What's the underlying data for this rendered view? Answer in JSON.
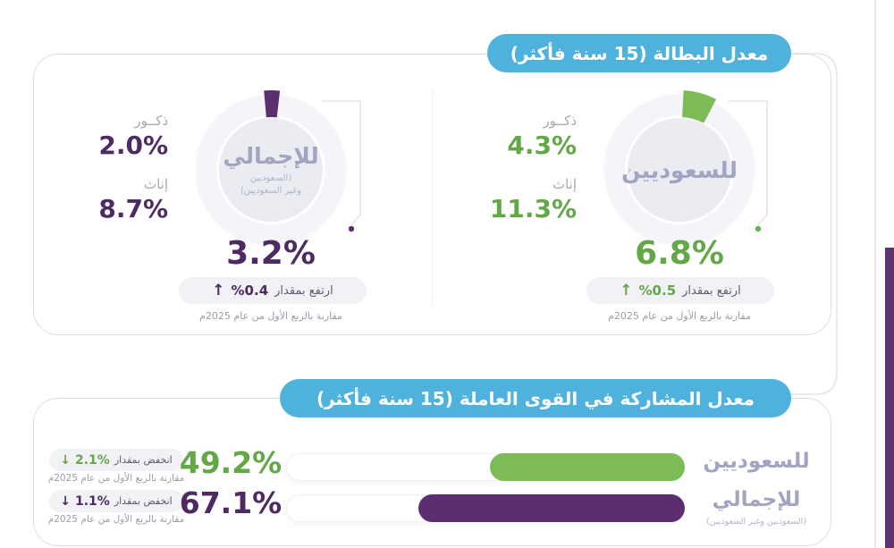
{
  "palette": {
    "blue": "#4fb2dc",
    "purple": "#5c2e70",
    "purple_text": "#4e2a62",
    "green": "#7cbb55",
    "green_text": "#63a847",
    "lavender_label": "#a1a5c2",
    "gray_label": "#a7a7b6",
    "note_gray": "#9b9baa",
    "pill_bg": "#f1f1f6",
    "edge_purple": "#5d3473"
  },
  "unemployment": {
    "title": "معدل البطالة (15 سنة فأكثر)",
    "total": {
      "center_label": "للإجمالي",
      "center_sub": "(السعوديين\nوغير السعوديين)",
      "males_label": "ذكــور",
      "males_value": "2.0%",
      "females_label": "إناث",
      "females_value": "8.7%",
      "main_value": "3.2%",
      "percent": 3.2,
      "change_arrow": "↑",
      "change_value": "%0.4",
      "change_label": "ارتفع بمقدار",
      "note": "مقارنة بالربع الأول من عام 2025م"
    },
    "saudis": {
      "center_label": "للسعوديين",
      "males_label": "ذكــور",
      "males_value": "4.3%",
      "females_label": "إناث",
      "females_value": "11.3%",
      "main_value": "6.8%",
      "percent": 6.8,
      "change_arrow": "↑",
      "change_value": "%0.5",
      "change_label": "ارتفع بمقدار",
      "note": "مقارنة بالربع الأول من عام 2025م"
    }
  },
  "participation": {
    "title": "معدل المشاركة في القوى العاملة (15 سنة فأكثر)",
    "rows": [
      {
        "label": "للسعوديين",
        "value": "49.2%",
        "percent": 49.2,
        "change_arrow": "↓",
        "change_value": "2.1%",
        "change_label": "انخفض بمقدار",
        "note": "مقارنة بالربع الأول من عام 2025م"
      },
      {
        "label": "للإجمالي",
        "sub": "(السعوديين وغير السعوديين)",
        "value": "67.1%",
        "percent": 67.1,
        "change_arrow": "↓",
        "change_value": "1.1%",
        "change_label": "انخفض بمقدار",
        "note": "مقارنة بالربع الأول من عام 2025م"
      }
    ]
  },
  "chart_data": [
    {
      "type": "pie",
      "title": "معدل البطالة (15 سنة فأكثر)",
      "series": [
        {
          "name": "للإجمالي (السعوديين وغير السعوديين)",
          "value": 3.2,
          "males": 2.0,
          "females": 8.7,
          "change": 0.4,
          "change_direction": "up",
          "comparison": "مقارنة بالربع الأول من عام 2025م"
        },
        {
          "name": "للسعوديين",
          "value": 6.8,
          "males": 4.3,
          "females": 11.3,
          "change": 0.5,
          "change_direction": "up",
          "comparison": "مقارنة بالربع الأول من عام 2025م"
        }
      ]
    },
    {
      "type": "bar",
      "title": "معدل المشاركة في القوى العاملة (15 سنة فأكثر)",
      "categories": [
        "للسعوديين",
        "للإجمالي (السعوديين وغير السعوديين)"
      ],
      "values": [
        49.2,
        67.1
      ],
      "changes": [
        -2.1,
        -1.1
      ],
      "xlim": [
        0,
        100
      ],
      "orientation": "horizontal-rtl",
      "bar_colors": [
        "#7cbb55",
        "#5c2e70"
      ]
    }
  ]
}
